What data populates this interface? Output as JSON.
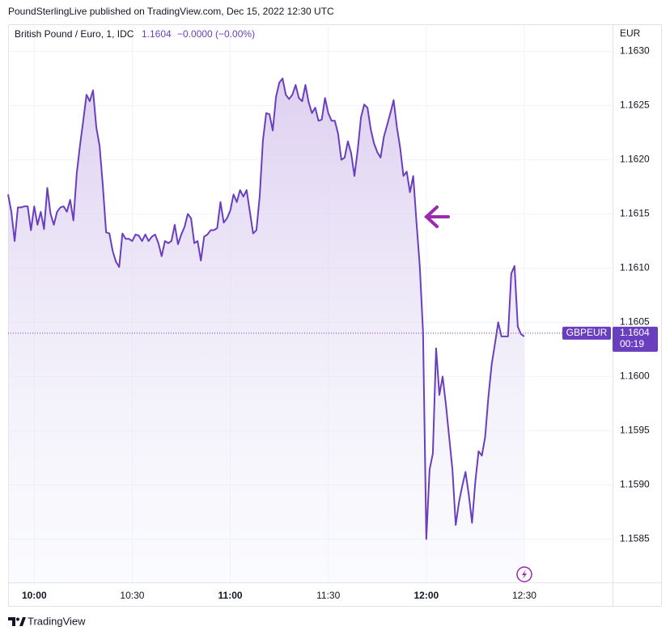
{
  "chart_data": {
    "type": "line",
    "header": "PoundSterlingLive published on TradingView.com, Dec 15, 2022 12:30 UTC",
    "symbol": "British Pound / Euro, 1, IDC",
    "last_price": 1.1604,
    "change": "−0.0000 (−0.00%)",
    "currency": "EUR",
    "ticker": "GBPEUR",
    "countdown": "00:19",
    "brand": "TradingView",
    "color": "#6a3fbf",
    "x": [
      "09:52",
      "09:53",
      "09:54",
      "09:55",
      "09:56",
      "09:57",
      "09:58",
      "09:59",
      "10:00",
      "10:01",
      "10:02",
      "10:03",
      "10:04",
      "10:05",
      "10:06",
      "10:07",
      "10:08",
      "10:09",
      "10:10",
      "10:11",
      "10:12",
      "10:13",
      "10:14",
      "10:15",
      "10:16",
      "10:17",
      "10:18",
      "10:19",
      "10:20",
      "10:21",
      "10:22",
      "10:23",
      "10:24",
      "10:25",
      "10:26",
      "10:27",
      "10:28",
      "10:29",
      "10:30",
      "10:31",
      "10:32",
      "10:33",
      "10:34",
      "10:35",
      "10:36",
      "10:37",
      "10:38",
      "10:39",
      "10:40",
      "10:41",
      "10:42",
      "10:43",
      "10:44",
      "10:45",
      "10:46",
      "10:47",
      "10:48",
      "10:49",
      "10:50",
      "10:51",
      "10:52",
      "10:53",
      "10:54",
      "10:55",
      "10:56",
      "10:57",
      "10:58",
      "10:59",
      "11:00",
      "11:01",
      "11:02",
      "11:03",
      "11:04",
      "11:05",
      "11:06",
      "11:07",
      "11:08",
      "11:09",
      "11:10",
      "11:11",
      "11:12",
      "11:13",
      "11:14",
      "11:15",
      "11:16",
      "11:17",
      "11:18",
      "11:19",
      "11:20",
      "11:21",
      "11:22",
      "11:23",
      "11:24",
      "11:25",
      "11:26",
      "11:27",
      "11:28",
      "11:29",
      "11:30",
      "11:31",
      "11:32",
      "11:33",
      "11:34",
      "11:35",
      "11:36",
      "11:37",
      "11:38",
      "11:39",
      "11:40",
      "11:41",
      "11:42",
      "11:43",
      "11:44",
      "11:45",
      "11:46",
      "11:47",
      "11:48",
      "11:49",
      "11:50",
      "11:51",
      "11:52",
      "11:53",
      "11:54",
      "11:55",
      "11:56",
      "11:57",
      "11:58",
      "11:59",
      "12:00",
      "12:01",
      "12:02",
      "12:03",
      "12:04",
      "12:05",
      "12:06",
      "12:07",
      "12:08",
      "12:09",
      "12:10",
      "12:11",
      "12:12",
      "12:13",
      "12:14",
      "12:15",
      "12:16",
      "12:17",
      "12:18",
      "12:19",
      "12:20",
      "12:21",
      "12:22",
      "12:23",
      "12:24",
      "12:25",
      "12:26",
      "12:27",
      "12:28",
      "12:29",
      "12:30"
    ],
    "values": [
      1.16168,
      1.16152,
      1.16125,
      1.16156,
      1.16156,
      1.16157,
      1.16157,
      1.16135,
      1.16157,
      1.1614,
      1.16152,
      1.16136,
      1.16174,
      1.1615,
      1.1614,
      1.16152,
      1.16156,
      1.16157,
      1.16152,
      1.16163,
      1.16144,
      1.16187,
      1.16213,
      1.16236,
      1.1626,
      1.16254,
      1.16264,
      1.1623,
      1.16213,
      1.16176,
      1.16133,
      1.16132,
      1.16116,
      1.16106,
      1.16101,
      1.16132,
      1.16127,
      1.16127,
      1.16125,
      1.16131,
      1.1613,
      1.16125,
      1.16131,
      1.16125,
      1.16129,
      1.16131,
      1.16123,
      1.16111,
      1.16125,
      1.16123,
      1.16125,
      1.1614,
      1.16122,
      1.16131,
      1.16138,
      1.1615,
      1.16146,
      1.16123,
      1.16125,
      1.16107,
      1.16129,
      1.16131,
      1.16135,
      1.16135,
      1.16137,
      1.16161,
      1.16142,
      1.16146,
      1.16153,
      1.16168,
      1.16161,
      1.16172,
      1.16166,
      1.16172,
      1.16152,
      1.16132,
      1.16135,
      1.16166,
      1.16218,
      1.16243,
      1.16242,
      1.16227,
      1.16258,
      1.16271,
      1.16275,
      1.1626,
      1.16256,
      1.1626,
      1.16269,
      1.16257,
      1.16254,
      1.16269,
      1.16253,
      1.16243,
      1.16248,
      1.16236,
      1.16237,
      1.16257,
      1.16243,
      1.16236,
      1.16236,
      1.16224,
      1.162,
      1.16202,
      1.16217,
      1.16206,
      1.16185,
      1.16209,
      1.16239,
      1.16251,
      1.16248,
      1.16228,
      1.16215,
      1.16207,
      1.16202,
      1.16221,
      1.16232,
      1.16243,
      1.16255,
      1.1623,
      1.16211,
      1.16185,
      1.16189,
      1.1617,
      1.16185,
      1.16142,
      1.16102,
      1.16041,
      1.1585,
      1.15914,
      1.15929,
      1.16026,
      1.15983,
      1.16,
      1.15974,
      1.15944,
      1.15914,
      1.15863,
      1.15884,
      1.15899,
      1.15912,
      1.15891,
      1.15865,
      1.15903,
      1.15931,
      1.15927,
      1.15944,
      1.15981,
      1.16011,
      1.1603,
      1.1605,
      1.16037,
      1.16037,
      1.16037,
      1.16095,
      1.16102,
      1.16046,
      1.16039,
      1.16037
    ],
    "xlim": [
      "09:52",
      "12:57"
    ],
    "xticks": [
      "10:00",
      "10:30",
      "11:00",
      "11:30",
      "12:00",
      "12:30"
    ],
    "ylim": [
      1.1581,
      1.16325
    ],
    "yticks": [
      1.1585,
      {
        "value": 1.159,
        "label": "1.1590"
      },
      1.1595,
      {
        "value": 1.16,
        "label": "1.1600"
      },
      1.1605,
      {
        "value": 1.161,
        "label": "1.1610"
      },
      1.1615,
      {
        "value": 1.162,
        "label": "1.1620"
      },
      1.1625,
      {
        "value": 1.163,
        "label": "1.1630"
      }
    ],
    "grid": true
  }
}
